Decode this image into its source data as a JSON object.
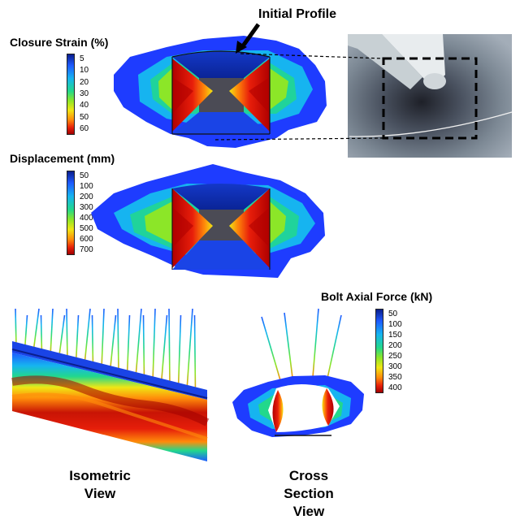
{
  "annotations": {
    "initial_profile": "Initial Profile"
  },
  "legends": {
    "closure_strain": {
      "title": "Closure Strain (%)",
      "ticks": [
        "5",
        "10",
        "20",
        "30",
        "40",
        "50",
        "60"
      ]
    },
    "displacement": {
      "title": "Displacement (mm)",
      "ticks": [
        "50",
        "100",
        "200",
        "300",
        "400",
        "500",
        "600",
        "700"
      ]
    },
    "bolt_force": {
      "title": "Bolt Axial Force (kN)",
      "ticks": [
        "50",
        "100",
        "150",
        "200",
        "250",
        "300",
        "350",
        "400"
      ]
    }
  },
  "captions": {
    "isometric": [
      "Isometric",
      "View"
    ],
    "cross_section": [
      "Cross",
      "Section",
      "View"
    ]
  },
  "colormap": [
    "#0a1e8c",
    "#1e5aff",
    "#16b4f0",
    "#22d88c",
    "#8ce628",
    "#f0e614",
    "#ff8c0a",
    "#e61e0a",
    "#a00000"
  ]
}
